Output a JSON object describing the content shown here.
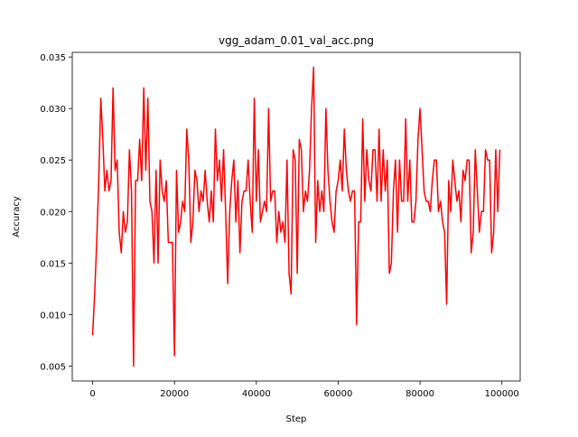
{
  "chart_data": {
    "type": "line",
    "title": "vgg_adam_0.01_val_acc.png",
    "x_label": "Step",
    "y_label": "Accuracy",
    "x": [
      0,
      500,
      1000,
      1500,
      2000,
      2500,
      3000,
      3500,
      4000,
      4500,
      5000,
      5500,
      6000,
      6500,
      7000,
      7500,
      8000,
      8500,
      9000,
      9500,
      10000,
      10500,
      11000,
      11500,
      12000,
      12500,
      13000,
      13500,
      14000,
      14500,
      15000,
      15500,
      16000,
      16500,
      17000,
      17500,
      18000,
      18500,
      19000,
      19500,
      20000,
      20500,
      21000,
      21500,
      22000,
      22500,
      23000,
      23500,
      24000,
      24500,
      25000,
      25500,
      26000,
      26500,
      27000,
      27500,
      28000,
      28500,
      29000,
      29500,
      30000,
      30500,
      31000,
      31500,
      32000,
      32500,
      33000,
      33500,
      34000,
      34500,
      35000,
      35500,
      36000,
      36500,
      37000,
      37500,
      38000,
      38500,
      39000,
      39500,
      40000,
      40500,
      41000,
      41500,
      42000,
      42500,
      43000,
      43500,
      44000,
      44500,
      45000,
      45500,
      46000,
      46500,
      47000,
      47500,
      48000,
      48500,
      49000,
      49500,
      50000,
      50500,
      51000,
      51500,
      52000,
      52500,
      53000,
      53500,
      54000,
      54500,
      55000,
      55500,
      56000,
      56500,
      57000,
      57500,
      58000,
      58500,
      59000,
      59500,
      60000,
      60500,
      61000,
      61500,
      62000,
      62500,
      63000,
      63500,
      64000,
      64500,
      65000,
      65500,
      66000,
      66500,
      67000,
      67500,
      68000,
      68500,
      69000,
      69500,
      70000,
      70500,
      71000,
      71500,
      72000,
      72500,
      73000,
      73500,
      74000,
      74500,
      75000,
      75500,
      76000,
      76500,
      77000,
      77500,
      78000,
      78500,
      79000,
      79500,
      80000,
      80500,
      81000,
      81500,
      82000,
      82500,
      83000,
      83500,
      84000,
      84500,
      85000,
      85500,
      86000,
      86500,
      87000,
      87500,
      88000,
      88500,
      89000,
      89500,
      90000,
      90500,
      91000,
      91500,
      92000,
      92500,
      93000,
      93500,
      94000,
      94500,
      95000,
      95500,
      96000,
      96500,
      97000,
      97500,
      98000,
      98500,
      99000,
      99500
    ],
    "series": [
      {
        "color": "#ff0000",
        "values": [
          0.008,
          0.012,
          0.017,
          0.023,
          0.031,
          0.027,
          0.022,
          0.024,
          0.022,
          0.023,
          0.032,
          0.024,
          0.025,
          0.018,
          0.016,
          0.02,
          0.018,
          0.019,
          0.026,
          0.022,
          0.005,
          0.023,
          0.023,
          0.027,
          0.023,
          0.032,
          0.024,
          0.031,
          0.021,
          0.02,
          0.015,
          0.024,
          0.015,
          0.025,
          0.022,
          0.021,
          0.023,
          0.017,
          0.017,
          0.017,
          0.006,
          0.024,
          0.018,
          0.019,
          0.021,
          0.02,
          0.028,
          0.025,
          0.017,
          0.019,
          0.024,
          0.023,
          0.02,
          0.022,
          0.021,
          0.024,
          0.021,
          0.019,
          0.022,
          0.019,
          0.028,
          0.023,
          0.025,
          0.021,
          0.026,
          0.02,
          0.013,
          0.02,
          0.023,
          0.025,
          0.019,
          0.023,
          0.016,
          0.021,
          0.022,
          0.022,
          0.025,
          0.021,
          0.018,
          0.031,
          0.021,
          0.026,
          0.019,
          0.02,
          0.021,
          0.02,
          0.03,
          0.021,
          0.022,
          0.022,
          0.017,
          0.02,
          0.018,
          0.019,
          0.017,
          0.025,
          0.014,
          0.012,
          0.026,
          0.025,
          0.014,
          0.027,
          0.026,
          0.02,
          0.022,
          0.021,
          0.024,
          0.03,
          0.034,
          0.017,
          0.023,
          0.02,
          0.022,
          0.02,
          0.03,
          0.024,
          0.021,
          0.019,
          0.018,
          0.022,
          0.023,
          0.025,
          0.022,
          0.028,
          0.024,
          0.022,
          0.021,
          0.022,
          0.022,
          0.009,
          0.019,
          0.019,
          0.029,
          0.021,
          0.026,
          0.023,
          0.022,
          0.026,
          0.026,
          0.021,
          0.028,
          0.021,
          0.026,
          0.022,
          0.025,
          0.014,
          0.015,
          0.022,
          0.025,
          0.018,
          0.025,
          0.021,
          0.021,
          0.029,
          0.021,
          0.025,
          0.019,
          0.019,
          0.021,
          0.027,
          0.03,
          0.026,
          0.022,
          0.021,
          0.021,
          0.02,
          0.023,
          0.025,
          0.025,
          0.02,
          0.021,
          0.019,
          0.018,
          0.011,
          0.023,
          0.02,
          0.025,
          0.023,
          0.021,
          0.022,
          0.019,
          0.024,
          0.023,
          0.025,
          0.025,
          0.016,
          0.018,
          0.026,
          0.022,
          0.018,
          0.02,
          0.02,
          0.026,
          0.025,
          0.025,
          0.016,
          0.018,
          0.026,
          0.02,
          0.026
        ]
      }
    ],
    "xlim": [
      -4975,
      104475
    ],
    "ylim": [
      0.00355,
      0.03545
    ],
    "xticks": [
      0,
      20000,
      40000,
      60000,
      80000,
      100000
    ],
    "yticks": [
      0.005,
      {
        "value": 0.01,
        "label": "0.010"
      },
      0.015,
      {
        "value": 0.02,
        "label": "0.020"
      },
      0.025,
      {
        "value": 0.03,
        "label": "0.030"
      },
      0.035
    ],
    "grid": false
  }
}
